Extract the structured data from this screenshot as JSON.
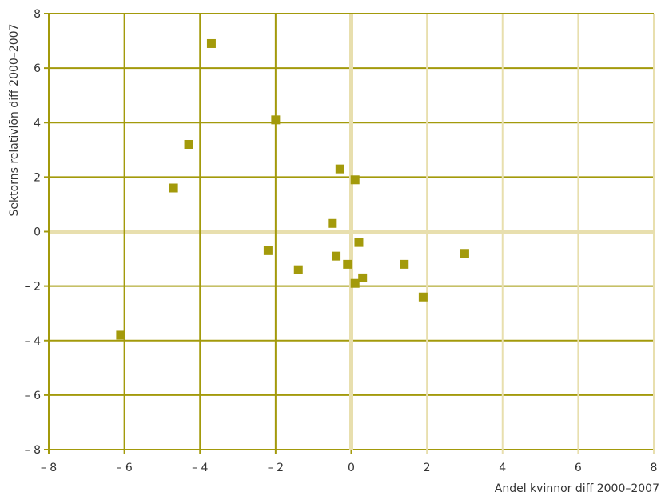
{
  "chart_data": {
    "type": "scatter",
    "title": "",
    "xlabel": "Andel kvinnor diff 2000–2007",
    "ylabel": "Sektorns relativlön diff 2000–2007",
    "xlim": [
      -8,
      8
    ],
    "ylim": [
      -8,
      8
    ],
    "xticks": [
      -8,
      -6,
      -4,
      -2,
      0,
      2,
      4,
      6,
      8
    ],
    "yticks": [
      -8,
      -6,
      -4,
      -2,
      0,
      2,
      4,
      6,
      8
    ],
    "xtick_labels": [
      "– 8",
      "– 6",
      "– 4",
      "– 2",
      "0",
      "2",
      "4",
      "6",
      "8"
    ],
    "ytick_labels": [
      "– 8",
      "– 6",
      "– 4",
      "– 2",
      "0",
      "2",
      "4",
      "6",
      "8"
    ],
    "grid": true,
    "legend": "none",
    "colors": {
      "marker": "#a39a0b",
      "grid_strong": "#a39a0b",
      "grid_light": "#e8dfae",
      "zero_line": "#e8dfae"
    },
    "series": [
      {
        "points": [
          {
            "x": -3.7,
            "y": 6.9
          },
          {
            "x": -2.0,
            "y": 4.1
          },
          {
            "x": -4.3,
            "y": 3.2
          },
          {
            "x": -4.7,
            "y": 1.6
          },
          {
            "x": -0.3,
            "y": 2.3
          },
          {
            "x": 0.1,
            "y": 1.9
          },
          {
            "x": -0.5,
            "y": 0.3
          },
          {
            "x": 0.2,
            "y": -0.4
          },
          {
            "x": -2.2,
            "y": -0.7
          },
          {
            "x": -0.4,
            "y": -0.9
          },
          {
            "x": -0.1,
            "y": -1.2
          },
          {
            "x": -1.4,
            "y": -1.4
          },
          {
            "x": 0.3,
            "y": -1.7
          },
          {
            "x": 0.1,
            "y": -1.9
          },
          {
            "x": 1.4,
            "y": -1.2
          },
          {
            "x": 3.0,
            "y": -0.8
          },
          {
            "x": 1.9,
            "y": -2.4
          },
          {
            "x": -6.1,
            "y": -3.8
          }
        ]
      }
    ]
  }
}
